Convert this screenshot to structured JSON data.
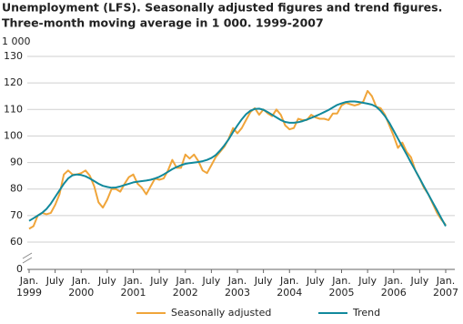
{
  "chart_data": {
    "type": "line",
    "title": "Unemployment (LFS). Seasonally adjusted figures and trend figures.",
    "subtitle": "Three-month moving average in 1 000. 1999-2007",
    "y_label": "1 000",
    "x": [
      "1999-01",
      "1999-02",
      "1999-03",
      "1999-04",
      "1999-05",
      "1999-06",
      "1999-07",
      "1999-08",
      "1999-09",
      "1999-10",
      "1999-11",
      "1999-12",
      "2000-01",
      "2000-02",
      "2000-03",
      "2000-04",
      "2000-05",
      "2000-06",
      "2000-07",
      "2000-08",
      "2000-09",
      "2000-10",
      "2000-11",
      "2000-12",
      "2001-01",
      "2001-02",
      "2001-03",
      "2001-04",
      "2001-05",
      "2001-06",
      "2001-07",
      "2001-08",
      "2001-09",
      "2001-10",
      "2001-11",
      "2001-12",
      "2002-01",
      "2002-02",
      "2002-03",
      "2002-04",
      "2002-05",
      "2002-06",
      "2002-07",
      "2002-08",
      "2002-09",
      "2002-10",
      "2002-11",
      "2002-12",
      "2003-01",
      "2003-02",
      "2003-03",
      "2003-04",
      "2003-05",
      "2003-06",
      "2003-07",
      "2003-08",
      "2003-09",
      "2003-10",
      "2003-11",
      "2003-12",
      "2004-01",
      "2004-02",
      "2004-03",
      "2004-04",
      "2004-05",
      "2004-06",
      "2004-07",
      "2004-08",
      "2004-09",
      "2004-10",
      "2004-11",
      "2004-12",
      "2005-01",
      "2005-02",
      "2005-03",
      "2005-04",
      "2005-05",
      "2005-06",
      "2005-07",
      "2005-08",
      "2005-09",
      "2005-10",
      "2005-11",
      "2005-12",
      "2006-01",
      "2006-02",
      "2006-03",
      "2006-04",
      "2006-05",
      "2006-06",
      "2006-07",
      "2006-08",
      "2006-09",
      "2006-10",
      "2006-11",
      "2006-12",
      "2007-01"
    ],
    "series": [
      {
        "name": "Seasonally adjusted",
        "color": "#f0a53a",
        "values": [
          65,
          66,
          70,
          71,
          70.5,
          71,
          74,
          78,
          85.5,
          87,
          85.5,
          85.5,
          86,
          87,
          85,
          81,
          75,
          73,
          76,
          80,
          80,
          79,
          82,
          84.5,
          85.5,
          82,
          80.5,
          78,
          81,
          84,
          83.5,
          84,
          87,
          91,
          88,
          88,
          93,
          91.5,
          93,
          90.5,
          87,
          86,
          89,
          92,
          94,
          96,
          99,
          103,
          101,
          103,
          106,
          109,
          110.5,
          108,
          110,
          108.5,
          107.5,
          110,
          108,
          104,
          102.5,
          103,
          106.5,
          106,
          106,
          108,
          107,
          106.5,
          106.5,
          106,
          108.5,
          108.5,
          111.5,
          112.5,
          112,
          111.5,
          112,
          113,
          117,
          115,
          111,
          110.5,
          108,
          104,
          100,
          95.5,
          97.5,
          94,
          92,
          87,
          84,
          80.5,
          78,
          74.5,
          71,
          68.5,
          66.5
        ]
      },
      {
        "name": "Trend",
        "color": "#11899c",
        "values": [
          68,
          69,
          70,
          71,
          72.5,
          74.5,
          77,
          79.5,
          82,
          84,
          85.2,
          85.5,
          85.3,
          84.8,
          84,
          83,
          82,
          81.2,
          80.8,
          80.5,
          80.6,
          81,
          81.5,
          82,
          82.5,
          82.8,
          83,
          83.2,
          83.5,
          84,
          84.6,
          85.5,
          86.5,
          87.5,
          88.3,
          89,
          89.5,
          89.8,
          90,
          90.2,
          90.5,
          91,
          91.7,
          92.8,
          94.5,
          96.5,
          98.8,
          101.5,
          104,
          106.3,
          108.2,
          109.5,
          110.2,
          110.3,
          109.9,
          109,
          108,
          107,
          106,
          105.3,
          105,
          105,
          105.2,
          105.6,
          106.2,
          106.8,
          107.5,
          108.2,
          109,
          109.8,
          110.8,
          111.7,
          112.3,
          112.8,
          113,
          113,
          112.8,
          112.5,
          112.2,
          111.8,
          111,
          109.5,
          107.5,
          105,
          102,
          99,
          96,
          93,
          90,
          87,
          84,
          81,
          78,
          75,
          72,
          69,
          66
        ]
      }
    ],
    "ylim": [
      0,
      130
    ],
    "axis_break": [
      0,
      60
    ],
    "yticks": [
      0,
      60,
      70,
      80,
      90,
      100,
      110,
      120,
      130
    ],
    "xticks": [
      {
        "value": "1999-01",
        "label": "Jan.\n1999"
      },
      {
        "value": "1999-07",
        "label": "July"
      },
      {
        "value": "2000-01",
        "label": "Jan.\n2000"
      },
      {
        "value": "2000-07",
        "label": "July"
      },
      {
        "value": "2001-01",
        "label": "Jan.\n2001"
      },
      {
        "value": "2001-07",
        "label": "July"
      },
      {
        "value": "2002-01",
        "label": "Jan.\n2002"
      },
      {
        "value": "2002-07",
        "label": "July"
      },
      {
        "value": "2003-01",
        "label": "Jan.\n2003"
      },
      {
        "value": "2003-07",
        "label": "July"
      },
      {
        "value": "2004-01",
        "label": "Jan.\n2004"
      },
      {
        "value": "2004-07",
        "label": "July"
      },
      {
        "value": "2005-01",
        "label": "Jan.\n2005"
      },
      {
        "value": "2005-07",
        "label": "July"
      },
      {
        "value": "2006-01",
        "label": "Jan.\n2006"
      },
      {
        "value": "2006-07",
        "label": "July"
      },
      {
        "value": "2007-01",
        "label": "Jan.\n2007"
      }
    ],
    "grid": true,
    "legend": "bottom"
  }
}
